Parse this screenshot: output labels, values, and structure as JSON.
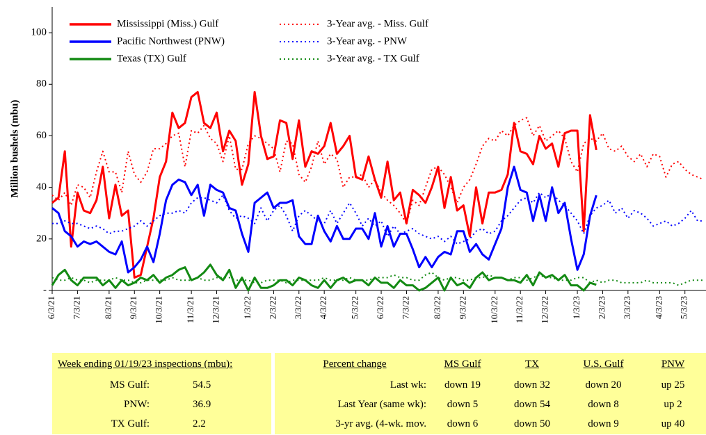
{
  "chart_data": {
    "type": "line",
    "y_label": "Million bushels (mbu)",
    "ylim": [
      0,
      110
    ],
    "yticks": [
      {
        "value": 0,
        "label": "-"
      },
      20,
      40,
      60,
      80,
      100
    ],
    "grid": false,
    "legend": "top-left",
    "categories": [
      "6/3/21",
      null,
      null,
      null,
      "7/3/21",
      null,
      null,
      null,
      null,
      "8/3/21",
      null,
      null,
      null,
      "9/3/21",
      null,
      null,
      null,
      "10/3/21",
      null,
      null,
      null,
      null,
      "11/3/21",
      null,
      null,
      null,
      "12/3/21",
      null,
      null,
      null,
      null,
      "1/3/22",
      null,
      null,
      null,
      "2/3/22",
      null,
      null,
      null,
      "3/3/22",
      null,
      null,
      null,
      "4/3/22",
      null,
      null,
      null,
      null,
      "5/3/22",
      null,
      null,
      null,
      "6/3/22",
      null,
      null,
      null,
      "7/3/22",
      null,
      null,
      null,
      null,
      "8/3/22",
      null,
      null,
      null,
      "9/3/22",
      null,
      null,
      null,
      null,
      "10/3/22",
      null,
      null,
      null,
      "11/3/22",
      null,
      null,
      null,
      "12/3/22",
      null,
      null,
      null,
      null,
      "1/3/23",
      null,
      null,
      null,
      "2/3/23",
      null,
      null,
      null,
      "3/3/23",
      null,
      null,
      null,
      null,
      "4/3/23",
      null,
      null,
      null,
      "5/3/23",
      null,
      null,
      null
    ],
    "series": [
      {
        "name": "Mississippi (Miss.) Gulf",
        "color": "#ff0000",
        "line_style": "solid",
        "values": [
          34,
          36,
          54,
          17,
          38,
          31,
          30,
          35,
          48,
          28,
          41,
          29,
          31,
          5,
          6,
          17,
          28,
          44,
          50,
          69,
          63,
          65,
          75,
          77,
          65,
          63,
          69,
          54,
          62,
          58,
          41,
          49,
          77,
          60,
          51,
          52,
          66,
          65,
          51,
          66,
          48,
          54,
          53,
          56,
          65,
          53,
          56,
          60,
          44,
          43,
          52,
          43,
          36,
          50,
          35,
          38,
          26,
          39,
          37,
          34,
          40,
          48,
          32,
          44,
          31,
          33,
          21,
          40,
          26,
          38,
          38,
          39,
          45,
          65,
          54,
          53,
          49,
          60,
          55,
          57,
          48,
          61,
          62,
          62,
          23,
          68,
          54.5,
          null,
          null,
          null,
          null,
          null,
          null,
          null,
          null,
          null,
          null,
          null,
          null,
          null,
          null,
          null,
          null,
          null
        ]
      },
      {
        "name": "Pacific Northwest (PNW)",
        "color": "#0000ff",
        "line_style": "solid",
        "values": [
          32,
          30,
          23,
          21,
          17,
          19,
          18,
          19,
          17,
          15,
          14,
          19,
          7,
          9,
          12,
          17,
          11,
          22,
          35,
          41,
          43,
          42,
          37,
          41,
          29,
          41,
          39,
          38,
          32,
          31,
          22,
          15,
          34,
          36,
          38,
          32,
          34,
          34,
          35,
          21,
          18,
          18,
          29,
          23,
          19,
          25,
          20,
          20,
          24,
          24,
          20,
          30,
          17,
          25,
          17,
          22,
          22,
          16,
          9,
          13,
          9,
          13,
          15,
          14,
          23,
          23,
          15,
          18,
          14,
          12,
          18,
          24,
          40,
          48,
          39,
          38,
          27,
          37,
          27,
          40,
          30,
          34,
          20,
          8,
          14,
          29,
          36.9,
          null,
          null,
          null,
          null,
          null,
          null,
          null,
          null,
          null,
          null,
          null,
          null,
          null,
          null,
          null,
          null,
          null
        ]
      },
      {
        "name": "Texas (TX) Gulf",
        "color": "#138a13",
        "line_style": "solid",
        "values": [
          2,
          6,
          8,
          4,
          2,
          5,
          5,
          5,
          2,
          4,
          1,
          4,
          2,
          3,
          5,
          4,
          6,
          3,
          5,
          6,
          8,
          9,
          4,
          5,
          7,
          10,
          6,
          4,
          8,
          1,
          5,
          0,
          5,
          1,
          1,
          2,
          4,
          4,
          2,
          5,
          4,
          2,
          1,
          4,
          1,
          4,
          5,
          3,
          4,
          4,
          2,
          5,
          3,
          3,
          1,
          4,
          2,
          2,
          0,
          1,
          3,
          5,
          0,
          5,
          2,
          3,
          1,
          5,
          7,
          4,
          5,
          5,
          4,
          4,
          3,
          6,
          2,
          7,
          5,
          6,
          4,
          6,
          2,
          2,
          0,
          3,
          2.2,
          null,
          null,
          null,
          null,
          null,
          null,
          null,
          null,
          null,
          null,
          null,
          null,
          null,
          null,
          null,
          null,
          null
        ]
      },
      {
        "name": "3-Year avg. - Miss. Gulf",
        "color": "#ff0000",
        "line_style": "dotted",
        "values": [
          37,
          35,
          38,
          33,
          41,
          40,
          36,
          46,
          54,
          46,
          46,
          38,
          54,
          45,
          42,
          46,
          55,
          55,
          57,
          60,
          61,
          48,
          62,
          61,
          64,
          59,
          57,
          50,
          60,
          47,
          47,
          57,
          60,
          59,
          57,
          55,
          46,
          58,
          57,
          45,
          42,
          48,
          58,
          49,
          53,
          51,
          40,
          44,
          44,
          45,
          40,
          43,
          38,
          35,
          33,
          30,
          26,
          35,
          33,
          40,
          47,
          48,
          45,
          40,
          34,
          40,
          43,
          49,
          56,
          59,
          58,
          62,
          60,
          64,
          66,
          67,
          60,
          64,
          58,
          60,
          62,
          59,
          50,
          46,
          57,
          59,
          58,
          61,
          55,
          54,
          56,
          52,
          50,
          53,
          48,
          53,
          52,
          44,
          49,
          50,
          47,
          45,
          44,
          43
        ]
      },
      {
        "name": "3-Year avg. - PNW",
        "color": "#0000ff",
        "line_style": "dotted",
        "values": [
          26,
          26,
          27,
          26,
          26,
          25,
          24,
          25,
          24,
          22,
          23,
          23,
          24,
          25,
          27,
          25,
          27,
          29,
          30,
          30,
          31,
          30,
          34,
          36,
          36,
          35,
          34,
          37,
          31,
          28,
          29,
          28,
          26,
          32,
          27,
          31,
          33,
          29,
          23,
          29,
          31,
          29,
          27,
          26,
          31,
          26,
          30,
          34,
          30,
          25,
          28,
          25,
          27,
          21,
          25,
          22,
          23,
          24,
          22,
          21,
          20,
          21,
          19,
          21,
          18,
          19,
          20,
          23,
          24,
          22,
          23,
          27,
          29,
          32,
          35,
          36,
          34,
          38,
          36,
          38,
          35,
          33,
          30,
          27,
          22,
          29,
          32,
          33,
          35,
          30,
          32,
          28,
          31,
          30,
          28,
          25,
          26,
          27,
          25,
          26,
          28,
          31,
          27,
          27
        ]
      },
      {
        "name": "3-Year avg. - TX Gulf",
        "color": "#138a13",
        "line_style": "dotted",
        "values": [
          5,
          4,
          4,
          5,
          4,
          4,
          3,
          4,
          4,
          4,
          5,
          4,
          4,
          3,
          3,
          4,
          4,
          4,
          4,
          5,
          4,
          4,
          4,
          5,
          4,
          4,
          5,
          5,
          5,
          4,
          4,
          4,
          3,
          3,
          4,
          4,
          4,
          3,
          4,
          4,
          4,
          4,
          4,
          5,
          4,
          4,
          4,
          5,
          4,
          4,
          4,
          5,
          5,
          5,
          6,
          5,
          5,
          4,
          4,
          6,
          7,
          5,
          4,
          5,
          5,
          4,
          4,
          5,
          5,
          6,
          5,
          5,
          4,
          5,
          5,
          4,
          5,
          6,
          5,
          5,
          4,
          4,
          4,
          5,
          5,
          3,
          4,
          3,
          4,
          4,
          3,
          3,
          3,
          3,
          4,
          3,
          3,
          3,
          3,
          2,
          3,
          4,
          4,
          4
        ]
      }
    ]
  },
  "table": {
    "left": {
      "header": "Week ending  01/19/23 inspections  (mbu):",
      "rows": [
        [
          "MS Gulf:",
          "54.5"
        ],
        [
          "PNW:",
          "36.9"
        ],
        [
          "TX Gulf:",
          "2.2"
        ]
      ]
    },
    "right": {
      "headers": [
        "Percent change",
        "MS Gulf",
        "TX",
        "U.S. Gulf",
        "PNW"
      ],
      "rows": [
        [
          "Last wk:",
          "down 19",
          "down 32",
          "down 20",
          "up 25"
        ],
        [
          "Last Year (same wk):",
          "down 5",
          "down 54",
          "down 8",
          "up 2"
        ],
        [
          "3-yr avg. (4-wk. mov.",
          "down 6",
          "down 50",
          "down 9",
          "up 40"
        ]
      ]
    }
  }
}
